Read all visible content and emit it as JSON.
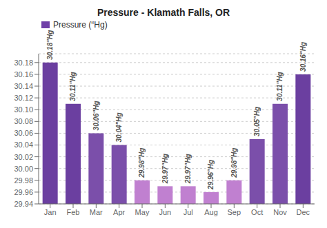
{
  "chart_data": {
    "type": "bar",
    "title": "Pressure - Klamath Falls, OR",
    "categories": [
      "Jan",
      "Feb",
      "Mar",
      "Apr",
      "May",
      "Jun",
      "Jul",
      "Aug",
      "Sep",
      "Oct",
      "Nov",
      "Dec"
    ],
    "series": [
      {
        "name": "Pressure (“Hg)",
        "color": "#7040a8",
        "colors": [
          "#6b3fa0",
          "#6b3fa0",
          "#7b4faa",
          "#7b4faa",
          "#c080d0",
          "#c080d0",
          "#c080d0",
          "#c080d0",
          "#c080d0",
          "#7b4faa",
          "#7b4faa",
          "#6b3fa0"
        ],
        "values": [
          30.18,
          30.11,
          30.06,
          30.04,
          29.98,
          29.97,
          29.97,
          29.96,
          29.98,
          30.05,
          30.11,
          30.16
        ],
        "value_labels": [
          "30.18\"Hg",
          "30.11\"Hg",
          "30.06\"Hg",
          "30.04\"Hg",
          "29.98\"Hg",
          "29.97\"Hg",
          "29.97\"Hg",
          "29.96\"Hg",
          "29.98\"Hg",
          "30.05\"Hg",
          "30.11\"Hg",
          "30.16\"Hg"
        ]
      }
    ],
    "ylim": [
      29.94,
      30.195
    ],
    "yticks": [
      29.94,
      29.96,
      29.98,
      {
        "value": 30,
        "label": "30.00"
      },
      30.02,
      30.04,
      30.06,
      30.08,
      {
        "value": 30.1,
        "label": "30.10"
      },
      30.12,
      30.14,
      30.16,
      30.18
    ],
    "grid": true,
    "legend": "upper left",
    "data_labels": true
  }
}
